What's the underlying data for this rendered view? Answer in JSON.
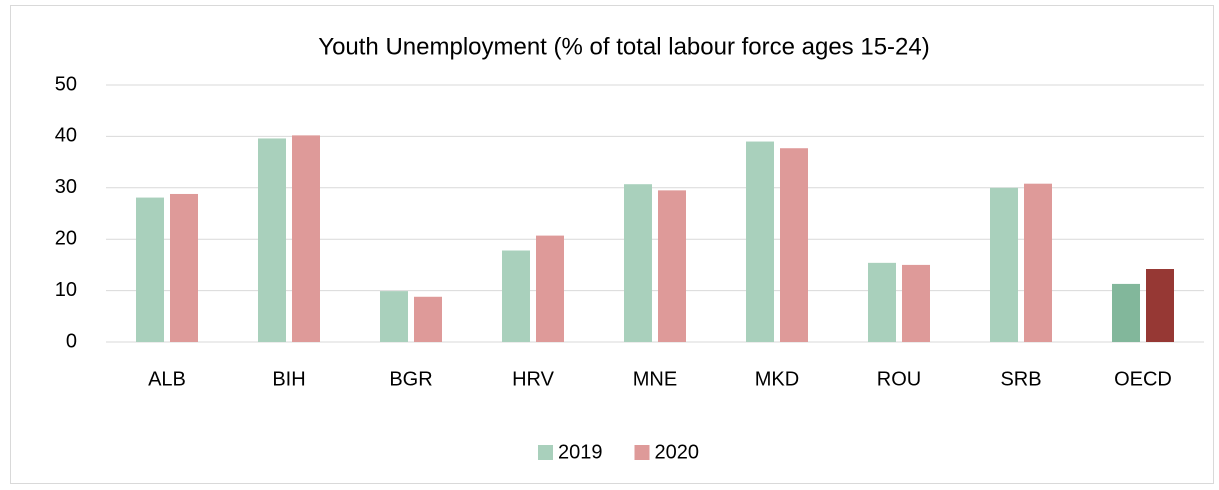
{
  "chart_data": {
    "type": "bar",
    "title": "Youth Unemployment (% of total labour force ages 15-24)",
    "categories": [
      "ALB",
      "BIH",
      "BGR",
      "HRV",
      "MNE",
      "MKD",
      "ROU",
      "SRB",
      "OECD"
    ],
    "series": [
      {
        "name": "2019",
        "color": "#a9d0bc",
        "colors": [
          "#a9d0bc",
          "#a9d0bc",
          "#a9d0bc",
          "#a9d0bc",
          "#a9d0bc",
          "#a9d0bc",
          "#a9d0bc",
          "#a9d0bc",
          "#82b79b"
        ],
        "values": [
          28.1,
          39.6,
          9.9,
          17.8,
          30.7,
          39.0,
          15.4,
          30.0,
          11.3
        ]
      },
      {
        "name": "2020",
        "color": "#de9a99",
        "colors": [
          "#de9a99",
          "#de9a99",
          "#de9a99",
          "#de9a99",
          "#de9a99",
          "#de9a99",
          "#de9a99",
          "#de9a99",
          "#963834"
        ],
        "values": [
          28.8,
          40.2,
          8.8,
          20.7,
          29.5,
          37.7,
          15.0,
          30.8,
          14.2
        ]
      }
    ],
    "ylim": [
      0,
      50
    ],
    "yticks": [
      0,
      10,
      20,
      30,
      40,
      50
    ],
    "grid": true,
    "legend": "bottom"
  }
}
